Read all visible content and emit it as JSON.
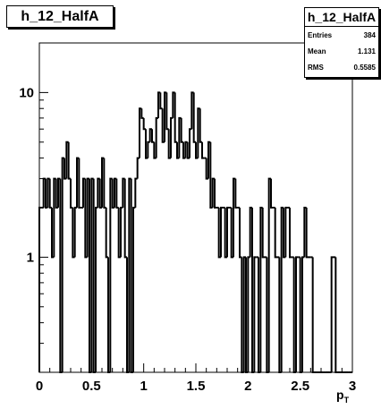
{
  "chart_data": {
    "type": "histogram",
    "title": "h_12_HalfA",
    "xlabel_main": "p",
    "xlabel_sub": "T",
    "ylabel": "",
    "x_range": [
      0,
      3
    ],
    "y_range": [
      0.2,
      20
    ],
    "y_scale": "log",
    "grid": false,
    "x_ticks": [
      {
        "v": 0,
        "label": "0"
      },
      {
        "v": 0.5,
        "label": "0.5"
      },
      {
        "v": 1,
        "label": "1"
      },
      {
        "v": 1.5,
        "label": "1.5"
      },
      {
        "v": 2,
        "label": "2"
      },
      {
        "v": 2.5,
        "label": "2.5"
      },
      {
        "v": 3,
        "label": "3"
      }
    ],
    "y_ticks": [
      {
        "v": 1,
        "label": "1"
      },
      {
        "v": 10,
        "label": "10"
      }
    ],
    "bin_width": 0.02,
    "bins": [
      [
        0.0,
        2
      ],
      [
        0.02,
        2
      ],
      [
        0.04,
        3
      ],
      [
        0.06,
        2
      ],
      [
        0.08,
        3
      ],
      [
        0.1,
        2
      ],
      [
        0.12,
        1
      ],
      [
        0.14,
        3
      ],
      [
        0.16,
        2
      ],
      [
        0.18,
        3
      ],
      [
        0.2,
        0
      ],
      [
        0.22,
        4
      ],
      [
        0.24,
        3
      ],
      [
        0.26,
        5
      ],
      [
        0.28,
        3
      ],
      [
        0.3,
        2
      ],
      [
        0.32,
        1
      ],
      [
        0.34,
        2
      ],
      [
        0.36,
        4
      ],
      [
        0.38,
        2
      ],
      [
        0.4,
        2
      ],
      [
        0.42,
        3
      ],
      [
        0.44,
        1
      ],
      [
        0.46,
        3
      ],
      [
        0.48,
        0
      ],
      [
        0.5,
        3
      ],
      [
        0.52,
        0
      ],
      [
        0.54,
        2
      ],
      [
        0.56,
        3
      ],
      [
        0.58,
        2
      ],
      [
        0.6,
        4
      ],
      [
        0.62,
        2
      ],
      [
        0.64,
        1
      ],
      [
        0.66,
        0
      ],
      [
        0.68,
        3
      ],
      [
        0.7,
        2
      ],
      [
        0.72,
        3
      ],
      [
        0.74,
        2
      ],
      [
        0.76,
        1
      ],
      [
        0.78,
        2
      ],
      [
        0.8,
        3
      ],
      [
        0.82,
        1
      ],
      [
        0.84,
        0
      ],
      [
        0.86,
        3
      ],
      [
        0.88,
        0
      ],
      [
        0.9,
        2
      ],
      [
        0.92,
        3
      ],
      [
        0.94,
        4
      ],
      [
        0.96,
        8
      ],
      [
        0.98,
        7
      ],
      [
        1.0,
        6
      ],
      [
        1.02,
        4
      ],
      [
        1.04,
        5
      ],
      [
        1.06,
        6
      ],
      [
        1.08,
        5
      ],
      [
        1.1,
        4
      ],
      [
        1.12,
        7
      ],
      [
        1.14,
        10
      ],
      [
        1.16,
        8
      ],
      [
        1.18,
        5
      ],
      [
        1.2,
        10
      ],
      [
        1.22,
        6
      ],
      [
        1.24,
        4
      ],
      [
        1.26,
        7
      ],
      [
        1.28,
        10
      ],
      [
        1.3,
        5
      ],
      [
        1.32,
        4
      ],
      [
        1.34,
        7
      ],
      [
        1.36,
        5
      ],
      [
        1.38,
        4
      ],
      [
        1.4,
        5
      ],
      [
        1.42,
        4
      ],
      [
        1.44,
        6
      ],
      [
        1.46,
        10
      ],
      [
        1.48,
        5
      ],
      [
        1.5,
        4
      ],
      [
        1.52,
        8
      ],
      [
        1.54,
        5
      ],
      [
        1.56,
        4
      ],
      [
        1.58,
        4
      ],
      [
        1.6,
        3
      ],
      [
        1.62,
        5
      ],
      [
        1.64,
        2
      ],
      [
        1.66,
        3
      ],
      [
        1.68,
        2
      ],
      [
        1.7,
        2
      ],
      [
        1.72,
        1
      ],
      [
        1.74,
        2
      ],
      [
        1.76,
        2
      ],
      [
        1.78,
        1
      ],
      [
        1.8,
        2
      ],
      [
        1.82,
        2
      ],
      [
        1.84,
        1
      ],
      [
        1.86,
        3
      ],
      [
        1.88,
        2
      ],
      [
        1.9,
        2
      ],
      [
        1.92,
        1
      ],
      [
        1.94,
        0
      ],
      [
        1.96,
        1
      ],
      [
        1.98,
        0
      ],
      [
        2.0,
        1
      ],
      [
        2.02,
        2
      ],
      [
        2.04,
        0
      ],
      [
        2.06,
        1
      ],
      [
        2.08,
        1
      ],
      [
        2.1,
        0
      ],
      [
        2.12,
        2
      ],
      [
        2.14,
        1
      ],
      [
        2.16,
        1
      ],
      [
        2.18,
        0
      ],
      [
        2.2,
        3
      ],
      [
        2.22,
        2
      ],
      [
        2.24,
        2
      ],
      [
        2.26,
        1
      ],
      [
        2.28,
        1
      ],
      [
        2.3,
        0
      ],
      [
        2.32,
        2
      ],
      [
        2.34,
        1
      ],
      [
        2.36,
        2
      ],
      [
        2.38,
        2
      ],
      [
        2.4,
        1
      ],
      [
        2.42,
        1
      ],
      [
        2.44,
        0
      ],
      [
        2.46,
        1
      ],
      [
        2.48,
        1
      ],
      [
        2.5,
        0
      ],
      [
        2.52,
        1
      ],
      [
        2.54,
        2
      ],
      [
        2.56,
        1
      ],
      [
        2.58,
        1
      ],
      [
        2.6,
        1
      ],
      [
        2.62,
        0
      ],
      [
        2.64,
        0
      ],
      [
        2.66,
        0
      ],
      [
        2.68,
        0
      ],
      [
        2.7,
        0
      ],
      [
        2.72,
        0
      ],
      [
        2.74,
        0
      ],
      [
        2.76,
        0
      ],
      [
        2.78,
        0
      ],
      [
        2.8,
        1
      ],
      [
        2.82,
        1
      ],
      [
        2.84,
        0
      ],
      [
        2.86,
        0
      ],
      [
        2.88,
        0
      ],
      [
        2.9,
        0
      ],
      [
        2.92,
        0
      ],
      [
        2.94,
        0
      ],
      [
        2.96,
        0
      ],
      [
        2.98,
        0
      ]
    ]
  },
  "title_box": {
    "text": "h_12_HalfA"
  },
  "stats_box": {
    "title": "h_12_HalfA",
    "rows": [
      {
        "label": "Entries",
        "value": "384"
      },
      {
        "label": "Mean",
        "value": "1.131"
      },
      {
        "label": "RMS",
        "value": "0.5585"
      }
    ]
  }
}
